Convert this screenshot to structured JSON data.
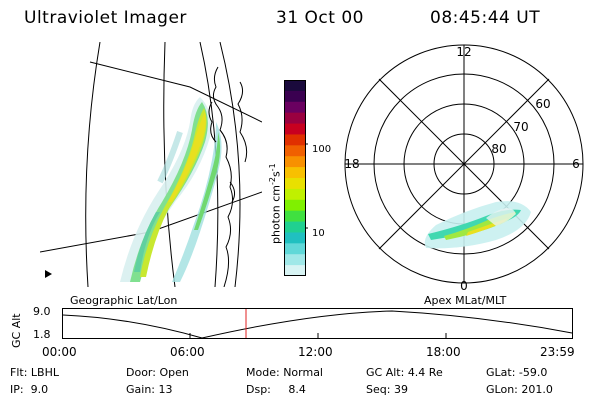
{
  "header": {
    "title": "Ultraviolet Imager",
    "date": "31 Oct 00",
    "time": "08:45:44 UT"
  },
  "geo_map": {
    "label": "Geographic Lat/Lon"
  },
  "colorbar": {
    "unit_prefix": "photon cm",
    "unit_sup1": "-2",
    "unit_mid": "s",
    "unit_sup2": "-1",
    "ticks": [
      "100",
      "10"
    ],
    "colors": [
      "#1a0a3c",
      "#3a0050",
      "#6a0060",
      "#9a0040",
      "#c80020",
      "#e03000",
      "#f06000",
      "#f89000",
      "#f8c000",
      "#e8e000",
      "#c0f000",
      "#80f000",
      "#40e040",
      "#20d090",
      "#20c0c0",
      "#60d8d8",
      "#a0e8e8",
      "#d8f4f4"
    ]
  },
  "polar_plot": {
    "label": "Apex MLat/MLT",
    "lat_labels": [
      "60",
      "70",
      "80"
    ],
    "mlt_labels": {
      "top": "12",
      "left": "18",
      "right": "6",
      "bottom": "0"
    }
  },
  "altitude_panel": {
    "y_label": "GC Alt",
    "y_max": "9.0",
    "y_min": "1.8",
    "x_ticks": [
      "00:00",
      "06:00",
      "12:00",
      "18:00",
      "23:59"
    ],
    "marker_color": "#e02020"
  },
  "info_rows": [
    [
      {
        "label": "Flt:",
        "value": "LBHL"
      },
      {
        "label": "Door:",
        "value": "Open"
      },
      {
        "label": "Mode:",
        "value": "Normal"
      },
      {
        "label": "GC Alt:",
        "value": "4.4 Re"
      },
      {
        "label": "GLat:",
        "value": "-59.0"
      }
    ],
    [
      {
        "label": "IP:",
        "value": "9.0"
      },
      {
        "label": "Gain:",
        "value": "13"
      },
      {
        "label": "Dsp:",
        "value": "8.4"
      },
      {
        "label": "Seq:",
        "value": "39"
      },
      {
        "label": "GLon:",
        "value": "201.0"
      }
    ]
  ]
}
